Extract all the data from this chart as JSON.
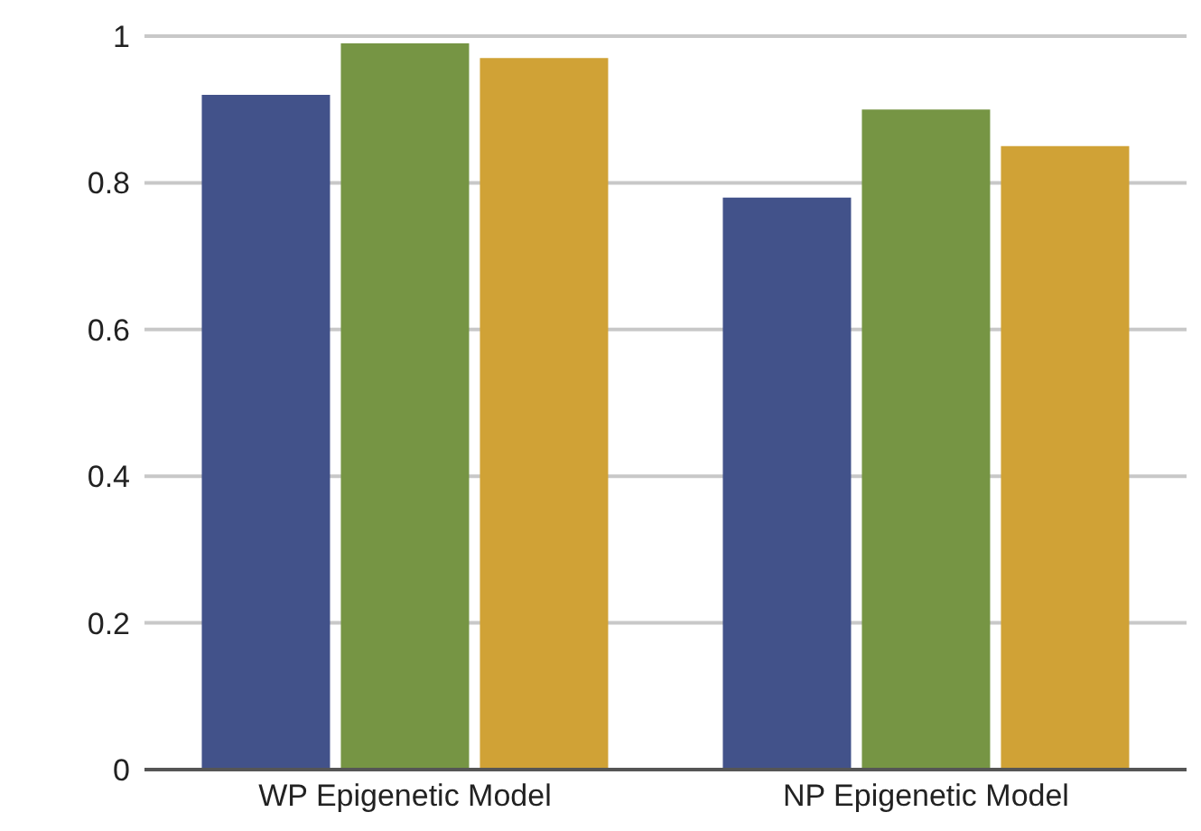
{
  "chart_data": {
    "type": "bar",
    "categories": [
      "WP Epigenetic Model",
      "NP Epigenetic Model"
    ],
    "series": [
      {
        "color": "#42528a",
        "values": [
          0.92,
          0.78
        ]
      },
      {
        "color": "#769544",
        "values": [
          0.99,
          0.9
        ]
      },
      {
        "color": "#d0a236",
        "values": [
          0.97,
          0.85
        ]
      }
    ],
    "ylim": [
      0,
      1
    ],
    "yticks": [
      0,
      0.2,
      0.4,
      0.6,
      0.8,
      1
    ],
    "grid": "y",
    "legend": false
  }
}
